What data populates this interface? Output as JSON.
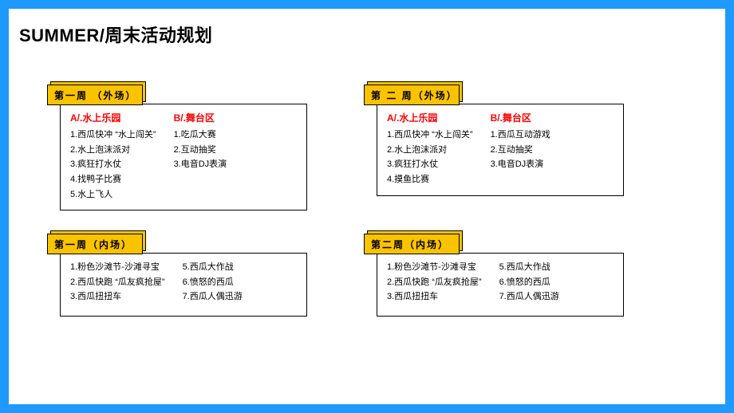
{
  "colors": {
    "page_bg": "#ffffff",
    "outer_bg": "#1e9aff",
    "tab_bg": "#fac300",
    "tab_border": "#000000",
    "panel_border": "#000000",
    "highlight": "#28e200",
    "header_red": "#ff0000",
    "text": "#000000"
  },
  "title": "SUMMER/周末活动规划",
  "cards": {
    "w1_out": {
      "tab": "第一周 （外场）",
      "colA_h": "A/.水上乐园",
      "colA": [
        "1.西瓜快冲 “水上闯关”",
        "2.水上泡沫派对",
        "3.疯狂打水仗",
        "4.找鸭子比赛",
        "5.水上飞人"
      ],
      "colB_h": "B/.舞台区",
      "colB": [
        "1.吃瓜大赛",
        "2.互动抽奖",
        "3.电音DJ表演"
      ]
    },
    "w2_out": {
      "tab": "第 二 周（外场）",
      "colA_h": "A/.水上乐园",
      "colA": [
        "1.西瓜快冲 “水上闯关”",
        "2.水上泡沫派对",
        "3.疯狂打水仗",
        "4.摸鱼比赛"
      ],
      "colB_h": "B/.舞台区",
      "colB": [
        "1.西瓜互动游戏",
        "2.互动抽奖",
        "3.电音DJ表演"
      ]
    },
    "w1_in": {
      "tab": "第一周（内场）",
      "colA": [
        "1.粉色沙滩节-沙滩寻宝",
        "2.西瓜快跑 “瓜友疯抢屋”",
        "3.西瓜扭扭车"
      ],
      "colB": [
        "5.西瓜大作战",
        "6.愤怒的西瓜",
        "7.西瓜人偶迅游"
      ]
    },
    "w2_in": {
      "tab": "第二周（内场）",
      "colA": [
        "1.粉色沙滩节-沙滩寻宝",
        "2.西瓜快跑 “瓜友疯抢屋”",
        "3.西瓜扭扭车"
      ],
      "colB": [
        "5.西瓜大作战",
        "6.愤怒的西瓜",
        "7.西瓜人偶迅游"
      ]
    }
  }
}
